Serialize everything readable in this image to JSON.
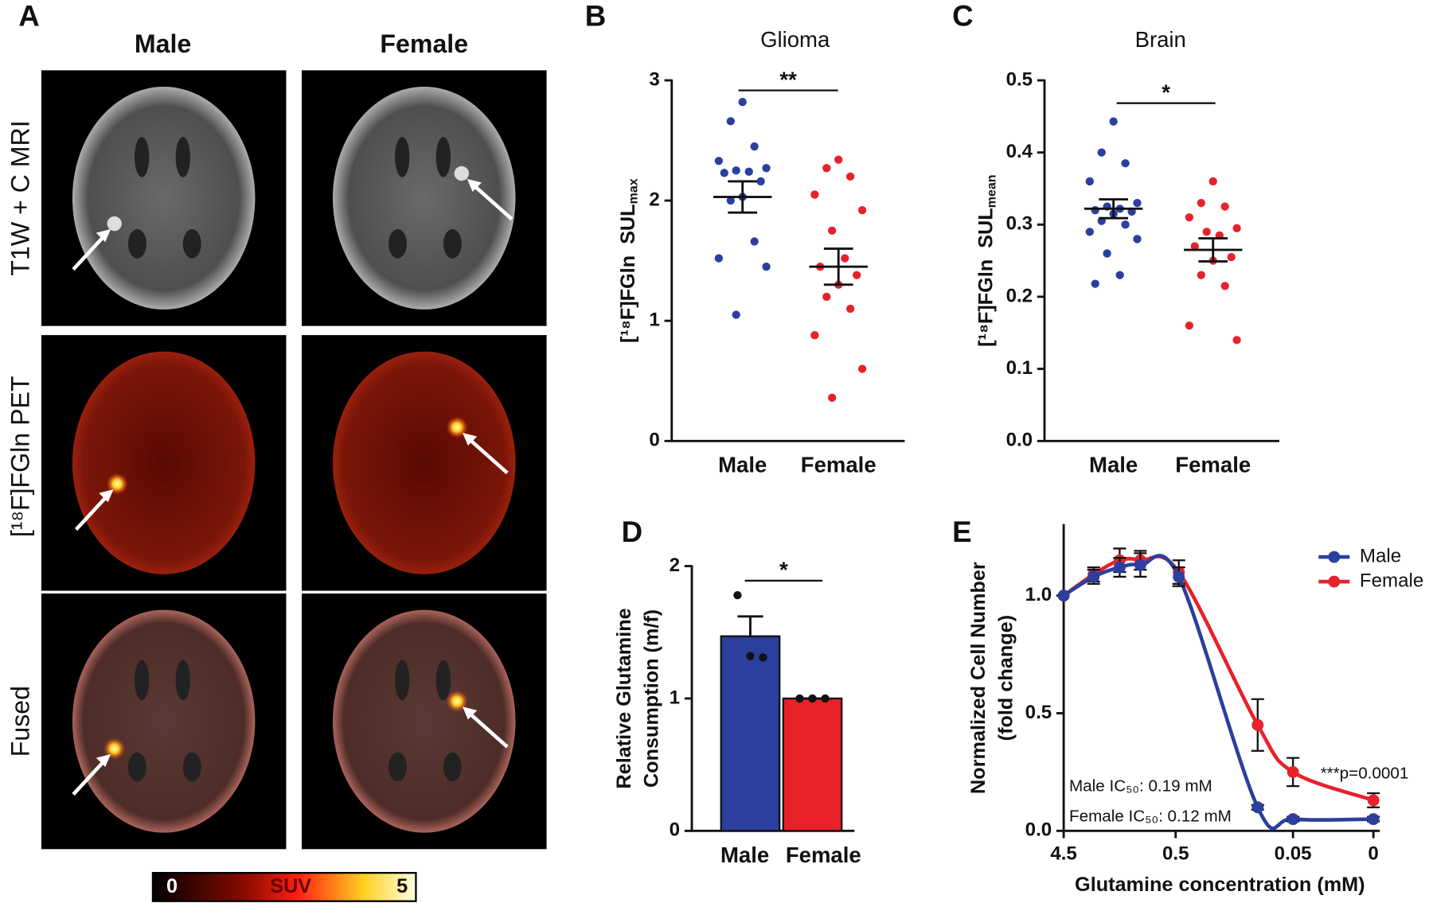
{
  "panel_a": {
    "letter": "A",
    "columns": [
      "Male",
      "Female"
    ],
    "rows": [
      "T1W + C MRI",
      "[¹⁸F]FGln PET",
      "Fused"
    ],
    "colorbar": {
      "min": 0,
      "label": "SUV",
      "max": 5
    }
  },
  "chart_data": [
    {
      "type": "strip",
      "panel": "B",
      "title": "Glioma",
      "ylabel": "[¹⁸F]FGln  SUL",
      "ylabel_sub": "max",
      "categories": [
        "Male",
        "Female"
      ],
      "colors": [
        "#2b3f9e",
        "#e8212b"
      ],
      "values": [
        [
          2.82,
          2.66,
          2.45,
          2.33,
          2.27,
          2.25,
          2.24,
          2.23,
          2.16,
          2.03,
          2.0,
          1.66,
          1.52,
          1.45,
          1.05
        ],
        [
          2.34,
          2.27,
          2.2,
          2.05,
          1.92,
          1.75,
          1.52,
          1.45,
          1.38,
          1.3,
          1.2,
          1.1,
          0.88,
          0.6,
          0.36
        ]
      ],
      "means": [
        2.03,
        1.45
      ],
      "sems": [
        0.13,
        0.15
      ],
      "significance": "**",
      "ylim": [
        0,
        3
      ],
      "yticks": [
        0,
        1,
        2,
        3
      ]
    },
    {
      "type": "strip",
      "panel": "C",
      "title": "Brain",
      "ylabel": "[¹⁸F]FGln  SUL",
      "ylabel_sub": "mean",
      "categories": [
        "Male",
        "Female"
      ],
      "colors": [
        "#2b3f9e",
        "#e8212b"
      ],
      "values": [
        [
          0.443,
          0.4,
          0.385,
          0.36,
          0.33,
          0.325,
          0.322,
          0.32,
          0.318,
          0.315,
          0.305,
          0.3,
          0.29,
          0.28,
          0.26,
          0.23,
          0.218
        ],
        [
          0.36,
          0.33,
          0.325,
          0.31,
          0.295,
          0.29,
          0.285,
          0.27,
          0.255,
          0.25,
          0.23,
          0.215,
          0.16,
          0.14
        ]
      ],
      "means": [
        0.322,
        0.265
      ],
      "sems": [
        0.013,
        0.016
      ],
      "significance": "*",
      "ylim": [
        0,
        0.5
      ],
      "yticks": [
        {
          "value": 0,
          "label": "0.0"
        },
        0.1,
        0.2,
        0.3,
        0.4,
        0.5
      ]
    },
    {
      "type": "bar",
      "panel": "D",
      "ylabel": [
        "Relative Glutamine",
        "Consumption (m/f)"
      ],
      "categories": [
        "Male",
        "Female"
      ],
      "colors": [
        "#2b3f9e",
        "#e8212b"
      ],
      "values": [
        1.47,
        1.0
      ],
      "errors": [
        0.15,
        0
      ],
      "points": [
        [
          1.78,
          1.32,
          1.31
        ],
        [
          1.0,
          1.0,
          1.0
        ]
      ],
      "significance": "*",
      "ylim": [
        0,
        2
      ],
      "yticks": [
        0,
        1,
        2
      ]
    },
    {
      "type": "line",
      "panel": "E",
      "xlabel": "Glutamine concentration (mM)",
      "ylabel": [
        "Normalized Cell Number",
        "(fold change)"
      ],
      "xscale": "log",
      "x": [
        4.5,
        2.5,
        1.5,
        1.0,
        0.47,
        0.1,
        0.05,
        0
      ],
      "series": [
        {
          "name": "Male",
          "color": "#2b3f9e",
          "values": [
            1.0,
            1.08,
            1.12,
            1.13,
            1.08,
            0.1,
            0.05,
            0.05
          ],
          "errors": [
            0,
            0.03,
            0.04,
            0.05,
            0.04,
            0.01,
            0.01,
            0.01
          ]
        },
        {
          "name": "Female",
          "color": "#e8212b",
          "values": [
            1.0,
            1.09,
            1.15,
            1.15,
            1.1,
            0.45,
            0.25,
            0.13
          ],
          "errors": [
            0,
            0.03,
            0.05,
            0.04,
            0.05,
            0.11,
            0.06,
            0.03
          ]
        }
      ],
      "legend": "upper right",
      "annotations": [
        "***p=0.0001",
        "Male IC₅₀: 0.19 mM",
        "Female IC₅₀: 0.12 mM"
      ],
      "xlim": [
        4.5,
        0
      ],
      "xticks": [
        4.5,
        0.5,
        0.05,
        0
      ],
      "ylim": [
        0,
        1.3
      ],
      "yticks": [
        {
          "value": 0,
          "label": "0.0"
        },
        0.5,
        {
          "value": 1,
          "label": "1.0"
        }
      ]
    }
  ]
}
